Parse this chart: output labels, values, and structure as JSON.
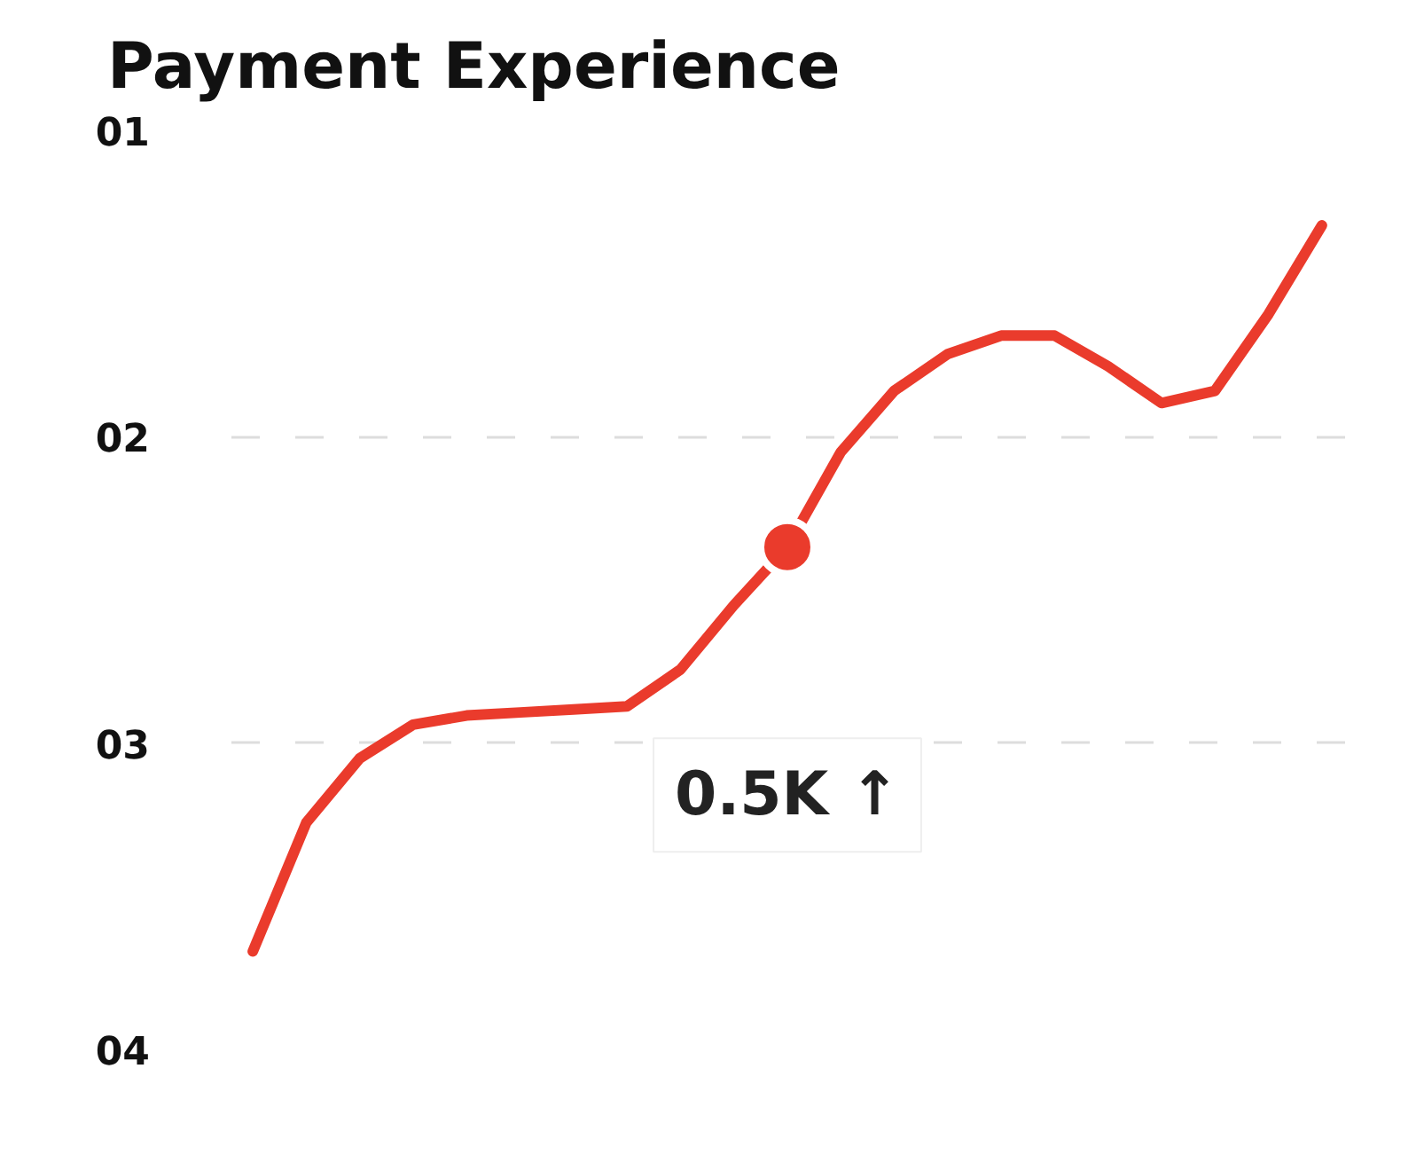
{
  "chart_data": {
    "type": "line",
    "title": "Payment Experience",
    "categories": [
      null,
      null,
      null,
      null,
      null,
      null,
      null,
      null,
      null,
      null,
      null,
      null,
      null,
      null,
      null,
      null,
      null,
      null,
      null,
      null,
      null
    ],
    "series": [
      {
        "color": "#ea3b2c",
        "values": [
          3.68,
          3.26,
          3.05,
          2.94,
          2.91,
          2.9,
          2.89,
          2.88,
          2.76,
          2.55,
          2.36,
          2.05,
          1.85,
          1.73,
          1.67,
          1.67,
          1.77,
          1.89,
          1.85,
          1.6,
          1.31
        ]
      },
      {
        "type": "scatter",
        "marker": "circle",
        "color": "#ea3b2c",
        "values": [
          null,
          null,
          null,
          null,
          null,
          null,
          null,
          null,
          null,
          null,
          2.36,
          null,
          null,
          null,
          null,
          null,
          null,
          null,
          null,
          null,
          null
        ]
      }
    ],
    "ylim": [
      4,
      1
    ],
    "yticks": [
      {
        "value": 1,
        "label": "01"
      },
      {
        "value": 2,
        "label": "02"
      },
      {
        "value": 3,
        "label": "03"
      },
      {
        "value": 4,
        "label": "04"
      }
    ],
    "grid": "y",
    "tick_labels": "y",
    "line_style": "solid",
    "annotations": [
      "0.5K ↑"
    ]
  }
}
